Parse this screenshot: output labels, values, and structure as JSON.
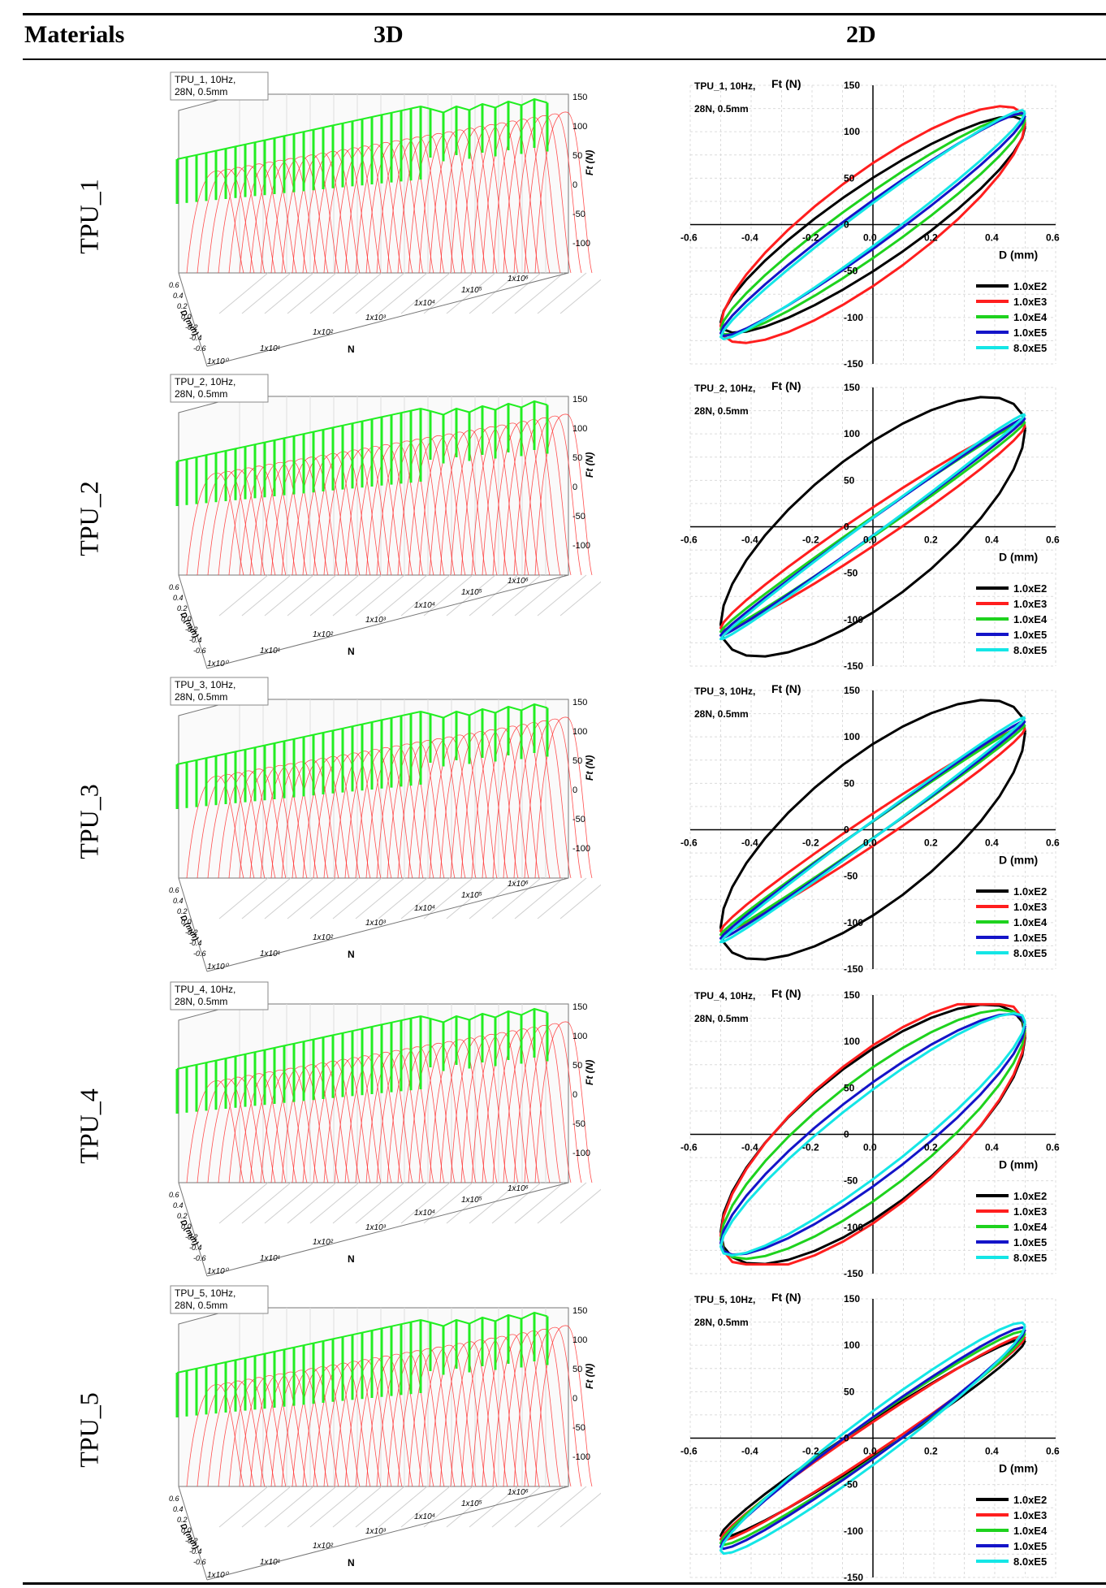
{
  "table": {
    "headers": {
      "materials": "Materials",
      "three_d": "3D",
      "two_d": "2D"
    },
    "rows": [
      {
        "material": "TPU_1",
        "legend_line1": "TPU_1, 10Hz,",
        "legend_line2": "28N, 0.5mm",
        "loop_widths": [
          0.3,
          0.38,
          0.2,
          0.14,
          0.12
        ]
      },
      {
        "material": "TPU_2",
        "legend_line1": "TPU_2, 10Hz,",
        "legend_line2": "28N, 0.5mm",
        "loop_widths": [
          0.55,
          0.12,
          0.06,
          0.05,
          0.05
        ]
      },
      {
        "material": "TPU_3",
        "legend_line1": "TPU_3, 10Hz,",
        "legend_line2": "28N, 0.5mm",
        "loop_widths": [
          0.55,
          0.1,
          0.05,
          0.05,
          0.05
        ]
      },
      {
        "material": "TPU_4",
        "legend_line1": "TPU_4, 10Hz,",
        "legend_line2": "28N, 0.5mm",
        "loop_widths": [
          0.55,
          0.55,
          0.4,
          0.3,
          0.25
        ]
      },
      {
        "material": "TPU_5",
        "legend_line1": "TPU_5, 10Hz,",
        "legend_line2": "28N, 0.5mm",
        "loop_widths": [
          0.12,
          0.1,
          0.12,
          0.12,
          0.15
        ]
      }
    ]
  },
  "plot3d": {
    "z_ticks": [
      "150",
      "100",
      "50",
      "0",
      "-50",
      "-100"
    ],
    "z_label": "Ft (N)",
    "n_ticks": [
      "1x10⁰",
      "1x10¹",
      "1x10²",
      "1x10³",
      "1x10⁴",
      "1x10⁵",
      "1x10⁶"
    ],
    "n_label": "N",
    "d_ticks": [
      "0.6",
      "0.4",
      "0.2",
      "0.0",
      "-0.2",
      "-0.4",
      "-0.6"
    ],
    "d_label": "D (mm)"
  },
  "plot2d": {
    "y_label": "Ft (N)",
    "x_label": "D (mm)",
    "x_ticks": [
      "-0.6",
      "-0.4",
      "-0.2",
      "0.0",
      "0.2",
      "0.4",
      "0.6"
    ],
    "y_ticks": [
      "150",
      "100",
      "50",
      "0",
      "-50",
      "-100",
      "-150"
    ],
    "x_range": [
      -0.6,
      0.6
    ],
    "y_range": [
      -150,
      150
    ],
    "series": [
      {
        "name": "1.0xE2",
        "color": "#000000"
      },
      {
        "name": "1.0xE3",
        "color": "#ff1e1e"
      },
      {
        "name": "1.0xE4",
        "color": "#1ed21e"
      },
      {
        "name": "1.0xE5",
        "color": "#1414c8"
      },
      {
        "name": "8.0xE5",
        "color": "#14e6e6"
      }
    ]
  },
  "colors": {
    "green_curve": "#22ee22",
    "red_curve": "#ff3030",
    "grid": "#dddddd"
  }
}
